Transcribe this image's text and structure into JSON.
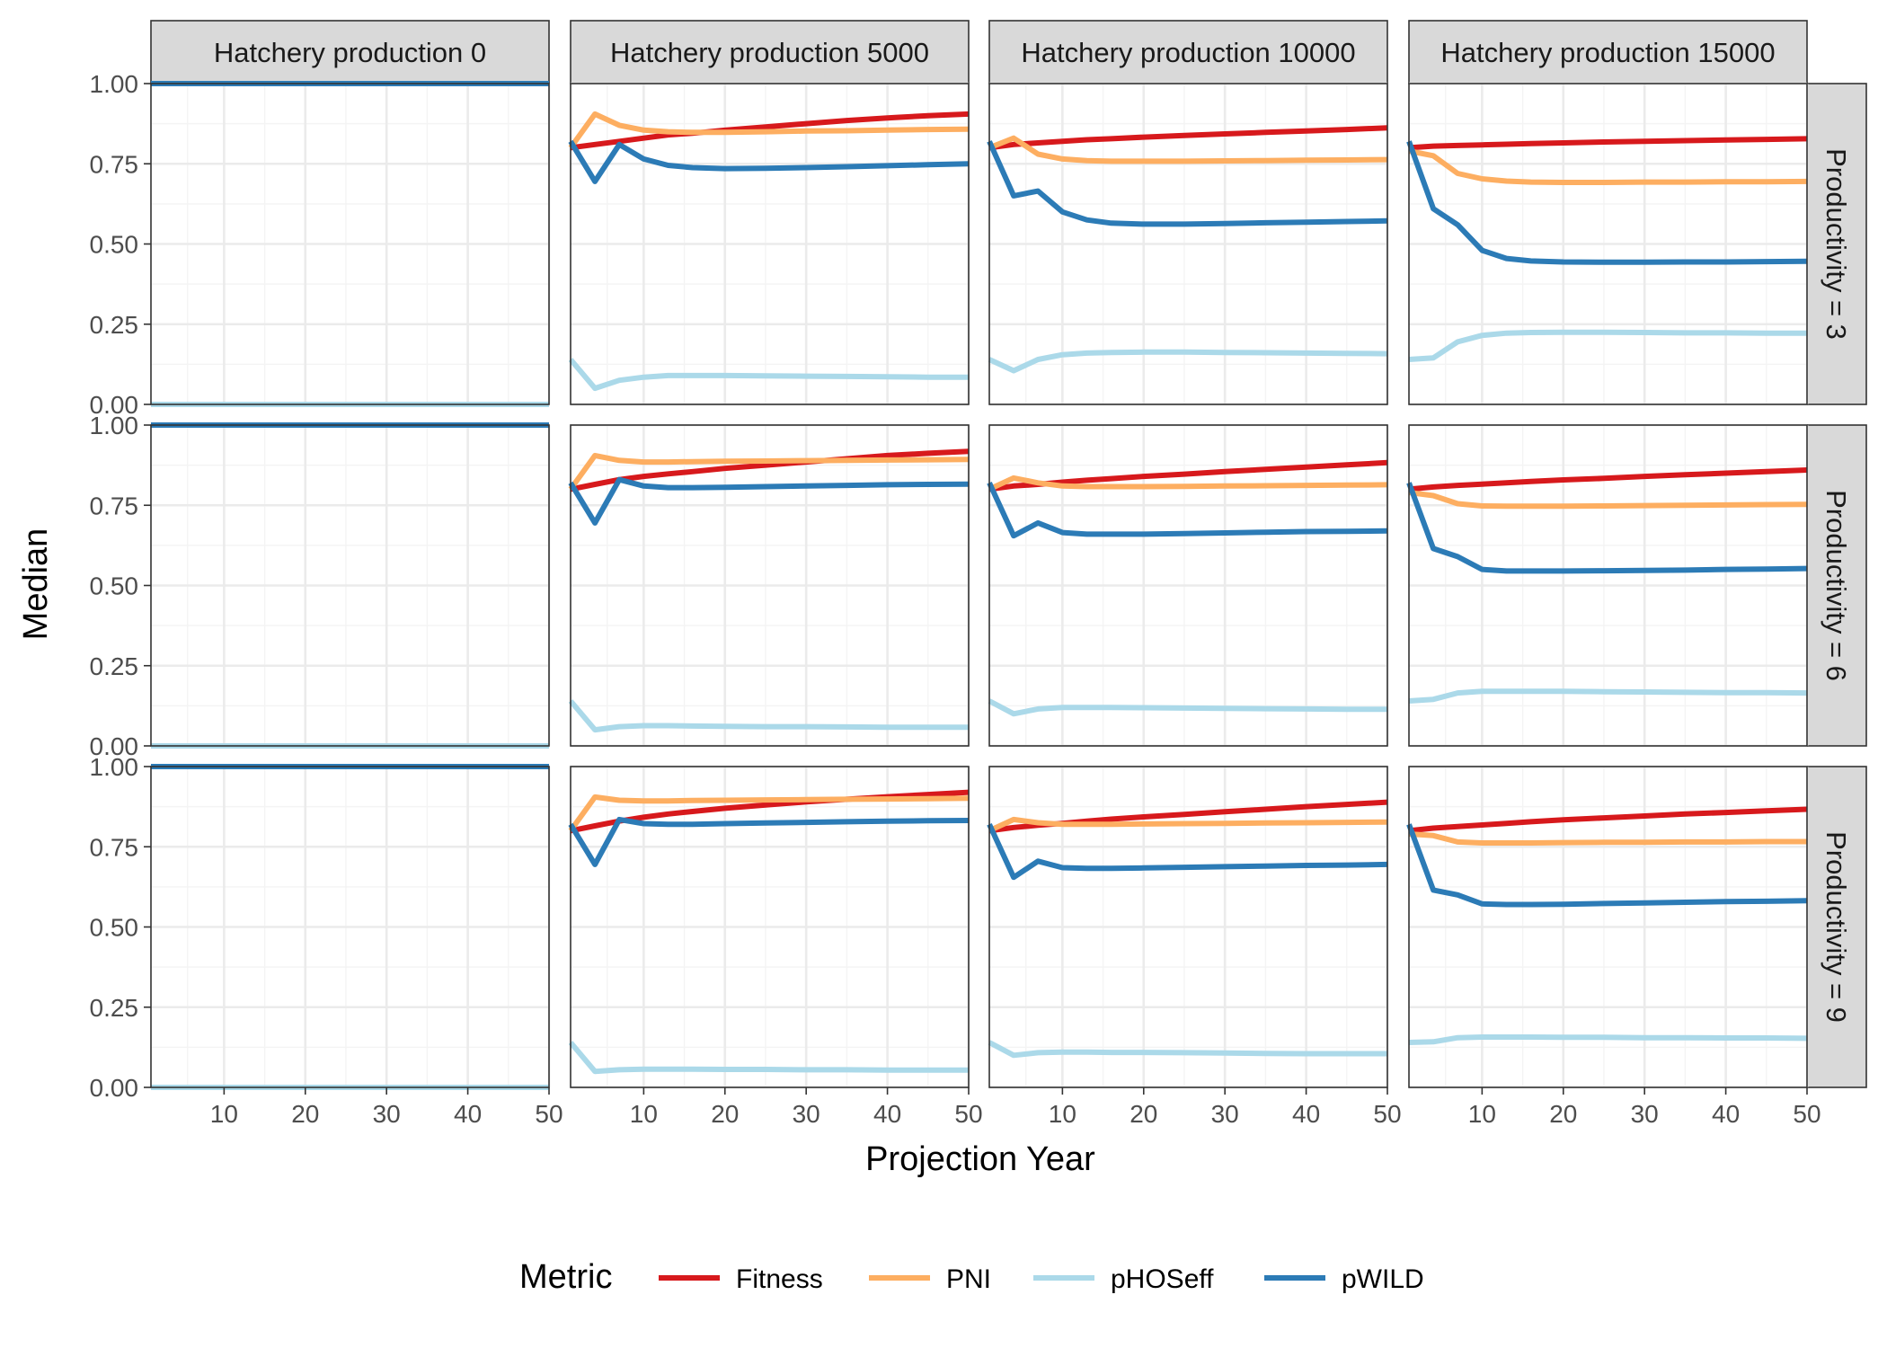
{
  "chart_data": {
    "type": "line",
    "xlabel": "Projection Year",
    "ylabel": "Median",
    "xlim": [
      1,
      50
    ],
    "ylim": [
      0,
      1
    ],
    "x_ticks": [
      10,
      20,
      30,
      40,
      50
    ],
    "y_ticks": [
      0,
      0.25,
      0.5,
      0.75,
      1
    ],
    "y_tick_labels": [
      "0.00",
      "0.25",
      "0.50",
      "0.75",
      "1.00"
    ],
    "grid": true,
    "legend": {
      "title": "Metric",
      "placement": "bottom",
      "entries": [
        "Fitness",
        "PNI",
        "pHOSeff",
        "pWILD"
      ]
    },
    "series_colors": {
      "Fitness": "#d7191c",
      "PNI": "#fdae61",
      "pHOSeff": "#abd9e9",
      "pWILD": "#2c7bb6"
    },
    "col_facets": [
      "Hatchery production 0",
      "Hatchery production 5000",
      "Hatchery production 10000",
      "Hatchery production 15000"
    ],
    "row_facets": [
      "Productivity = 3",
      "Productivity = 6",
      "Productivity = 9"
    ],
    "x": [
      1,
      4,
      7,
      10,
      13,
      16,
      20,
      25,
      30,
      35,
      40,
      45,
      50
    ],
    "panels": [
      {
        "row": "Productivity = 3",
        "col": "Hatchery production 0",
        "series": [
          {
            "name": "Fitness",
            "values": [
              1,
              1,
              1,
              1,
              1,
              1,
              1,
              1,
              1,
              1,
              1,
              1,
              1
            ]
          },
          {
            "name": "PNI",
            "values": [
              1,
              1,
              1,
              1,
              1,
              1,
              1,
              1,
              1,
              1,
              1,
              1,
              1
            ]
          },
          {
            "name": "pHOSeff",
            "values": [
              0,
              0,
              0,
              0,
              0,
              0,
              0,
              0,
              0,
              0,
              0,
              0,
              0
            ]
          },
          {
            "name": "pWILD",
            "values": [
              1,
              1,
              1,
              1,
              1,
              1,
              1,
              1,
              1,
              1,
              1,
              1,
              1
            ]
          }
        ]
      },
      {
        "row": "Productivity = 3",
        "col": "Hatchery production 5000",
        "series": [
          {
            "name": "Fitness",
            "values": [
              0.8,
              0.81,
              0.82,
              0.83,
              0.84,
              0.845,
              0.855,
              0.865,
              0.875,
              0.885,
              0.893,
              0.9,
              0.905
            ]
          },
          {
            "name": "PNI",
            "values": [
              0.8,
              0.905,
              0.87,
              0.855,
              0.85,
              0.848,
              0.848,
              0.85,
              0.852,
              0.853,
              0.855,
              0.857,
              0.858
            ]
          },
          {
            "name": "pHOSeff",
            "values": [
              0.14,
              0.05,
              0.075,
              0.085,
              0.09,
              0.09,
              0.09,
              0.089,
              0.088,
              0.087,
              0.086,
              0.085,
              0.085
            ]
          },
          {
            "name": "pWILD",
            "values": [
              0.82,
              0.695,
              0.81,
              0.765,
              0.745,
              0.738,
              0.735,
              0.736,
              0.738,
              0.741,
              0.744,
              0.747,
              0.75
            ]
          }
        ]
      },
      {
        "row": "Productivity = 3",
        "col": "Hatchery production 10000",
        "series": [
          {
            "name": "Fitness",
            "values": [
              0.8,
              0.81,
              0.815,
              0.82,
              0.825,
              0.828,
              0.833,
              0.838,
              0.843,
              0.848,
              0.852,
              0.857,
              0.862
            ]
          },
          {
            "name": "PNI",
            "values": [
              0.8,
              0.83,
              0.78,
              0.765,
              0.76,
              0.758,
              0.758,
              0.758,
              0.759,
              0.76,
              0.761,
              0.762,
              0.763
            ]
          },
          {
            "name": "pHOSeff",
            "values": [
              0.14,
              0.105,
              0.14,
              0.155,
              0.16,
              0.162,
              0.163,
              0.163,
              0.162,
              0.161,
              0.16,
              0.159,
              0.158
            ]
          },
          {
            "name": "pWILD",
            "values": [
              0.82,
              0.65,
              0.665,
              0.6,
              0.575,
              0.565,
              0.562,
              0.562,
              0.564,
              0.566,
              0.568,
              0.57,
              0.572
            ]
          }
        ]
      },
      {
        "row": "Productivity = 3",
        "col": "Hatchery production 15000",
        "series": [
          {
            "name": "Fitness",
            "values": [
              0.8,
              0.805,
              0.807,
              0.809,
              0.811,
              0.813,
              0.815,
              0.818,
              0.82,
              0.822,
              0.824,
              0.826,
              0.828
            ]
          },
          {
            "name": "PNI",
            "values": [
              0.79,
              0.775,
              0.72,
              0.703,
              0.696,
              0.693,
              0.692,
              0.692,
              0.693,
              0.693,
              0.694,
              0.694,
              0.695
            ]
          },
          {
            "name": "pHOSeff",
            "values": [
              0.14,
              0.145,
              0.195,
              0.215,
              0.222,
              0.224,
              0.225,
              0.225,
              0.224,
              0.223,
              0.223,
              0.222,
              0.222
            ]
          },
          {
            "name": "pWILD",
            "values": [
              0.82,
              0.61,
              0.56,
              0.48,
              0.455,
              0.447,
              0.444,
              0.443,
              0.443,
              0.444,
              0.444,
              0.445,
              0.446
            ]
          }
        ]
      },
      {
        "row": "Productivity = 6",
        "col": "Hatchery production 0",
        "series": [
          {
            "name": "Fitness",
            "values": [
              1,
              1,
              1,
              1,
              1,
              1,
              1,
              1,
              1,
              1,
              1,
              1,
              1
            ]
          },
          {
            "name": "PNI",
            "values": [
              1,
              1,
              1,
              1,
              1,
              1,
              1,
              1,
              1,
              1,
              1,
              1,
              1
            ]
          },
          {
            "name": "pHOSeff",
            "values": [
              0,
              0,
              0,
              0,
              0,
              0,
              0,
              0,
              0,
              0,
              0,
              0,
              0
            ]
          },
          {
            "name": "pWILD",
            "values": [
              1,
              1,
              1,
              1,
              1,
              1,
              1,
              1,
              1,
              1,
              1,
              1,
              1
            ]
          }
        ]
      },
      {
        "row": "Productivity = 6",
        "col": "Hatchery production 5000",
        "series": [
          {
            "name": "Fitness",
            "values": [
              0.8,
              0.815,
              0.83,
              0.84,
              0.848,
              0.855,
              0.865,
              0.875,
              0.885,
              0.895,
              0.905,
              0.912,
              0.918
            ]
          },
          {
            "name": "PNI",
            "values": [
              0.8,
              0.905,
              0.89,
              0.885,
              0.885,
              0.886,
              0.887,
              0.888,
              0.889,
              0.89,
              0.891,
              0.892,
              0.893
            ]
          },
          {
            "name": "pHOSeff",
            "values": [
              0.14,
              0.05,
              0.06,
              0.063,
              0.063,
              0.062,
              0.061,
              0.06,
              0.06,
              0.059,
              0.058,
              0.058,
              0.058
            ]
          },
          {
            "name": "pWILD",
            "values": [
              0.82,
              0.695,
              0.83,
              0.81,
              0.805,
              0.805,
              0.806,
              0.808,
              0.81,
              0.812,
              0.814,
              0.815,
              0.816
            ]
          }
        ]
      },
      {
        "row": "Productivity = 6",
        "col": "Hatchery production 10000",
        "series": [
          {
            "name": "Fitness",
            "values": [
              0.8,
              0.81,
              0.815,
              0.822,
              0.828,
              0.833,
              0.84,
              0.847,
              0.855,
              0.862,
              0.869,
              0.876,
              0.883
            ]
          },
          {
            "name": "PNI",
            "values": [
              0.8,
              0.835,
              0.82,
              0.81,
              0.808,
              0.808,
              0.808,
              0.809,
              0.81,
              0.811,
              0.812,
              0.813,
              0.814
            ]
          },
          {
            "name": "pHOSeff",
            "values": [
              0.14,
              0.1,
              0.115,
              0.12,
              0.12,
              0.12,
              0.119,
              0.118,
              0.117,
              0.116,
              0.115,
              0.114,
              0.114
            ]
          },
          {
            "name": "pWILD",
            "values": [
              0.82,
              0.655,
              0.695,
              0.665,
              0.66,
              0.66,
              0.66,
              0.662,
              0.664,
              0.666,
              0.668,
              0.669,
              0.67
            ]
          }
        ]
      },
      {
        "row": "Productivity = 6",
        "col": "Hatchery production 15000",
        "series": [
          {
            "name": "Fitness",
            "values": [
              0.8,
              0.807,
              0.812,
              0.816,
              0.82,
              0.824,
              0.829,
              0.834,
              0.84,
              0.845,
              0.85,
              0.855,
              0.86
            ]
          },
          {
            "name": "PNI",
            "values": [
              0.79,
              0.78,
              0.755,
              0.748,
              0.747,
              0.747,
              0.747,
              0.748,
              0.749,
              0.75,
              0.751,
              0.752,
              0.753
            ]
          },
          {
            "name": "pHOSeff",
            "values": [
              0.14,
              0.145,
              0.165,
              0.17,
              0.17,
              0.17,
              0.17,
              0.169,
              0.168,
              0.167,
              0.166,
              0.166,
              0.165
            ]
          },
          {
            "name": "pWILD",
            "values": [
              0.82,
              0.615,
              0.59,
              0.55,
              0.545,
              0.545,
              0.545,
              0.546,
              0.547,
              0.548,
              0.55,
              0.551,
              0.553
            ]
          }
        ]
      },
      {
        "row": "Productivity = 9",
        "col": "Hatchery production 0",
        "series": [
          {
            "name": "Fitness",
            "values": [
              1,
              1,
              1,
              1,
              1,
              1,
              1,
              1,
              1,
              1,
              1,
              1,
              1
            ]
          },
          {
            "name": "PNI",
            "values": [
              1,
              1,
              1,
              1,
              1,
              1,
              1,
              1,
              1,
              1,
              1,
              1,
              1
            ]
          },
          {
            "name": "pHOSeff",
            "values": [
              0,
              0,
              0,
              0,
              0,
              0,
              0,
              0,
              0,
              0,
              0,
              0,
              0
            ]
          },
          {
            "name": "pWILD",
            "values": [
              1,
              1,
              1,
              1,
              1,
              1,
              1,
              1,
              1,
              1,
              1,
              1,
              1
            ]
          }
        ]
      },
      {
        "row": "Productivity = 9",
        "col": "Hatchery production 5000",
        "series": [
          {
            "name": "Fitness",
            "values": [
              0.8,
              0.815,
              0.83,
              0.842,
              0.852,
              0.86,
              0.87,
              0.88,
              0.89,
              0.898,
              0.906,
              0.913,
              0.92
            ]
          },
          {
            "name": "PNI",
            "values": [
              0.8,
              0.905,
              0.895,
              0.893,
              0.893,
              0.894,
              0.895,
              0.896,
              0.897,
              0.898,
              0.899,
              0.9,
              0.901
            ]
          },
          {
            "name": "pHOSeff",
            "values": [
              0.14,
              0.05,
              0.055,
              0.057,
              0.057,
              0.057,
              0.056,
              0.056,
              0.055,
              0.055,
              0.054,
              0.054,
              0.054
            ]
          },
          {
            "name": "pWILD",
            "values": [
              0.82,
              0.695,
              0.835,
              0.822,
              0.82,
              0.82,
              0.822,
              0.824,
              0.826,
              0.828,
              0.83,
              0.831,
              0.832
            ]
          }
        ]
      },
      {
        "row": "Productivity = 9",
        "col": "Hatchery production 10000",
        "series": [
          {
            "name": "Fitness",
            "values": [
              0.8,
              0.81,
              0.817,
              0.823,
              0.83,
              0.836,
              0.843,
              0.851,
              0.859,
              0.867,
              0.875,
              0.882,
              0.889
            ]
          },
          {
            "name": "PNI",
            "values": [
              0.8,
              0.835,
              0.825,
              0.82,
              0.82,
              0.82,
              0.821,
              0.822,
              0.823,
              0.824,
              0.825,
              0.826,
              0.827
            ]
          },
          {
            "name": "pHOSeff",
            "values": [
              0.14,
              0.1,
              0.108,
              0.11,
              0.11,
              0.109,
              0.109,
              0.108,
              0.107,
              0.106,
              0.105,
              0.105,
              0.105
            ]
          },
          {
            "name": "pWILD",
            "values": [
              0.82,
              0.655,
              0.705,
              0.685,
              0.683,
              0.683,
              0.684,
              0.686,
              0.688,
              0.69,
              0.692,
              0.693,
              0.695
            ]
          }
        ]
      },
      {
        "row": "Productivity = 9",
        "col": "Hatchery production 15000",
        "series": [
          {
            "name": "Fitness",
            "values": [
              0.8,
              0.808,
              0.813,
              0.818,
              0.823,
              0.828,
              0.834,
              0.84,
              0.846,
              0.852,
              0.857,
              0.862,
              0.867
            ]
          },
          {
            "name": "PNI",
            "values": [
              0.79,
              0.785,
              0.765,
              0.762,
              0.762,
              0.762,
              0.763,
              0.764,
              0.764,
              0.765,
              0.765,
              0.766,
              0.766
            ]
          },
          {
            "name": "pHOSeff",
            "values": [
              0.14,
              0.142,
              0.155,
              0.157,
              0.157,
              0.157,
              0.156,
              0.156,
              0.155,
              0.155,
              0.154,
              0.154,
              0.153
            ]
          },
          {
            "name": "pWILD",
            "values": [
              0.82,
              0.615,
              0.6,
              0.572,
              0.57,
              0.57,
              0.571,
              0.573,
              0.575,
              0.577,
              0.579,
              0.58,
              0.582
            ]
          }
        ]
      }
    ]
  }
}
